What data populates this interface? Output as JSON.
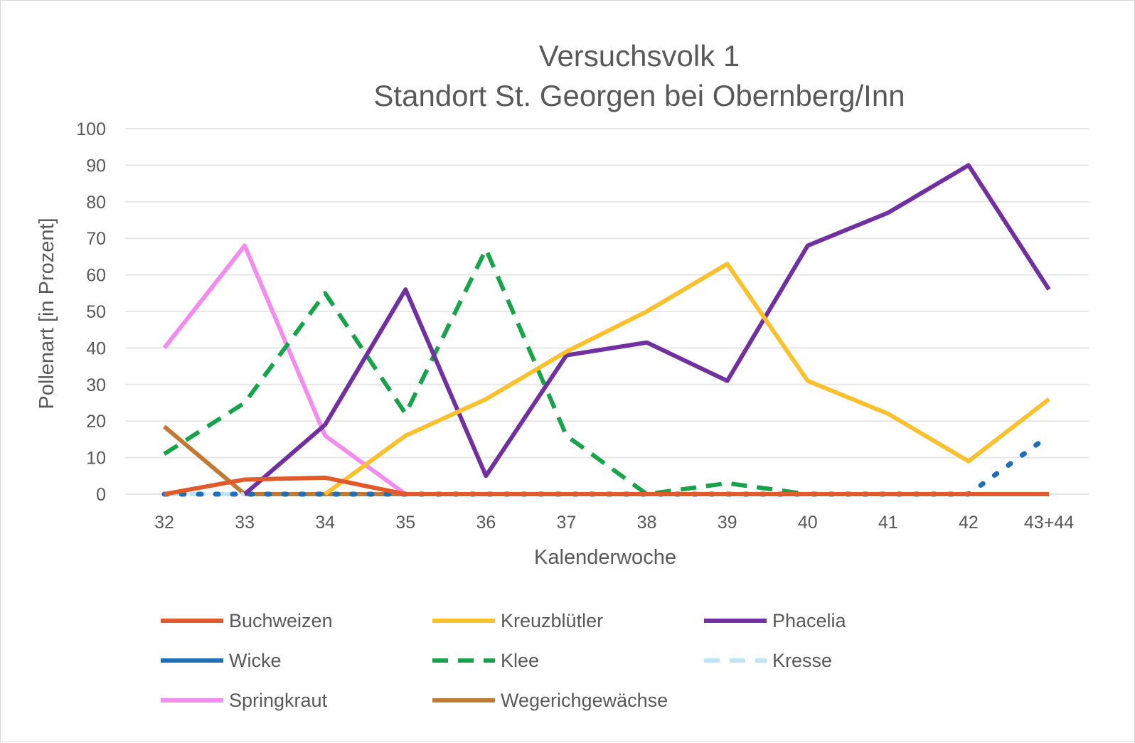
{
  "chart_data": {
    "type": "line",
    "title": [
      "Versuchsvolk 1",
      "Standort St. Georgen bei Obernberg/Inn"
    ],
    "xlabel": "Kalenderwoche",
    "ylabel": "Pollenart [in Prozent]",
    "ylim": [
      0,
      100
    ],
    "yticks": [
      0,
      10,
      20,
      30,
      40,
      50,
      60,
      70,
      80,
      90,
      100
    ],
    "grid": true,
    "legend": "bottom",
    "categories": [
      "32",
      "33",
      "34",
      "35",
      "36",
      "37",
      "38",
      "39",
      "40",
      "41",
      "42",
      "43+44"
    ],
    "series": [
      {
        "name": "Buchweizen",
        "color": "#e15a2a",
        "dash": "solid",
        "values": [
          0,
          4,
          4.5,
          0,
          0,
          0,
          0,
          0,
          0,
          0,
          0,
          0
        ]
      },
      {
        "name": "Kreuzblütler",
        "color": "#fbc02d",
        "dash": "solid",
        "values": [
          null,
          null,
          0,
          16,
          26,
          39,
          50,
          63,
          31,
          22,
          9,
          26
        ]
      },
      {
        "name": "Phacelia",
        "color": "#7030a0",
        "dash": "solid",
        "values": [
          null,
          0,
          19,
          56,
          5,
          38,
          41.5,
          31,
          68,
          77,
          90,
          56
        ]
      },
      {
        "name": "Wicke",
        "color": "#1f6fb8",
        "dash": "dot",
        "values": [
          0,
          0,
          0,
          0,
          0,
          0,
          0,
          0,
          0,
          0,
          0,
          16
        ]
      },
      {
        "name": "Klee",
        "color": "#17a34a",
        "dash": "dash",
        "values": [
          11,
          25,
          55,
          22,
          67,
          16,
          0,
          3,
          0,
          null,
          null,
          null
        ]
      },
      {
        "name": "Kresse",
        "color": "#bfe3f7",
        "dash": "dash",
        "values": [
          0,
          0,
          null,
          null,
          null,
          null,
          null,
          null,
          null,
          null,
          null,
          null
        ]
      },
      {
        "name": "Springkraut",
        "color": "#f48cf0",
        "dash": "solid",
        "values": [
          40,
          68,
          16,
          0,
          null,
          null,
          null,
          null,
          null,
          null,
          null,
          null
        ]
      },
      {
        "name": "Wegerichgewächse",
        "color": "#c07a34",
        "dash": "solid",
        "values": [
          18.5,
          0,
          0,
          0,
          0,
          0,
          0,
          0,
          0,
          0,
          0,
          0
        ]
      }
    ]
  }
}
